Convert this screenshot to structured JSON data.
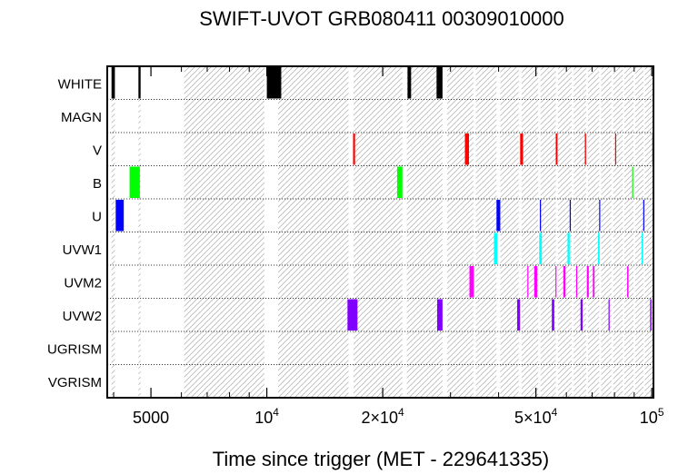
{
  "chart_data": {
    "type": "timeline",
    "title": "SWIFT-UVOT GRB080411 00309010000",
    "xlabel": "Time since trigger (MET - 229641335)",
    "xscale": "log",
    "xlim": [
      3850,
      101000
    ],
    "xticks": [
      {
        "value": 5000,
        "label": "5000"
      },
      {
        "value": 10000,
        "base": "10",
        "exp": "4"
      },
      {
        "value": 20000,
        "base": "2×10",
        "exp": "4"
      },
      {
        "value": 50000,
        "base": "5×10",
        "exp": "4"
      },
      {
        "value": 100000,
        "base": "10",
        "exp": "5"
      }
    ],
    "minor_ticks": [
      4000,
      6000,
      7000,
      8000,
      9000,
      30000,
      40000,
      60000,
      70000,
      80000,
      90000
    ],
    "rows": [
      "WHITE",
      "MAGN",
      "V",
      "B",
      "U",
      "UVW1",
      "UVM2",
      "UVW2",
      "UGRISM",
      "VGRISM"
    ],
    "visibility_windows": [
      [
        3950,
        4030
      ],
      [
        4640,
        4700
      ],
      [
        6100,
        9850
      ],
      [
        10700,
        16300
      ],
      [
        16800,
        22500
      ],
      [
        23100,
        28600
      ],
      [
        29400,
        34400
      ],
      [
        34900,
        39500
      ],
      [
        40400,
        45100
      ],
      [
        45900,
        50700
      ],
      [
        51400,
        56300
      ],
      [
        57100,
        61900
      ],
      [
        62700,
        67500
      ],
      [
        68300,
        73000
      ],
      [
        73900,
        78500
      ],
      [
        79400,
        84100
      ],
      [
        84900,
        89600
      ],
      [
        90500,
        95100
      ],
      [
        95900,
        101000
      ]
    ],
    "exposures": [
      {
        "filter": "WHITE",
        "color": "#000000",
        "intervals": [
          [
            3950,
            4030
          ],
          [
            4640,
            4700
          ],
          [
            10000,
            10900
          ],
          [
            23200,
            23700
          ],
          [
            27600,
            28600
          ]
        ]
      },
      {
        "filter": "V",
        "color": "#ff0000",
        "intervals": [
          [
            16750,
            16950
          ],
          [
            32700,
            33500
          ],
          [
            45500,
            46300
          ],
          [
            56300,
            56900
          ],
          [
            67000,
            67500
          ],
          [
            80300,
            80500
          ],
          [
            100300,
            100800
          ]
        ]
      },
      {
        "filter": "B",
        "color": "#00ff00",
        "intervals": [
          [
            4400,
            4680
          ],
          [
            21800,
            22500
          ],
          [
            88900,
            89300
          ]
        ]
      },
      {
        "filter": "U",
        "color": "#0000ff",
        "intervals": [
          [
            4050,
            4250
          ],
          [
            39500,
            40400
          ],
          [
            51200,
            51400
          ],
          [
            61200,
            61400
          ],
          [
            73000,
            73300
          ],
          [
            95000,
            95200
          ]
        ]
      },
      {
        "filter": "UVW1",
        "color": "#00ffff",
        "intervals": [
          [
            38900,
            39700
          ],
          [
            51000,
            51800
          ],
          [
            60400,
            61200
          ],
          [
            72500,
            73200
          ],
          [
            94100,
            94800
          ]
        ]
      },
      {
        "filter": "UVM2",
        "color": "#ff00ff",
        "intervals": [
          [
            33600,
            34500
          ],
          [
            47500,
            47700
          ],
          [
            49500,
            50400
          ],
          [
            56200,
            56400
          ],
          [
            58900,
            59700
          ],
          [
            63600,
            63800
          ],
          [
            67800,
            68600
          ],
          [
            70300,
            71000
          ],
          [
            86300,
            87000
          ]
        ]
      },
      {
        "filter": "UVW2",
        "color": "#8000ff",
        "intervals": [
          [
            16200,
            17200
          ],
          [
            27700,
            28600
          ],
          [
            44700,
            45500
          ],
          [
            55000,
            55800
          ],
          [
            65300,
            66100
          ],
          [
            77200,
            77600
          ],
          [
            99000,
            99800
          ]
        ]
      }
    ]
  }
}
